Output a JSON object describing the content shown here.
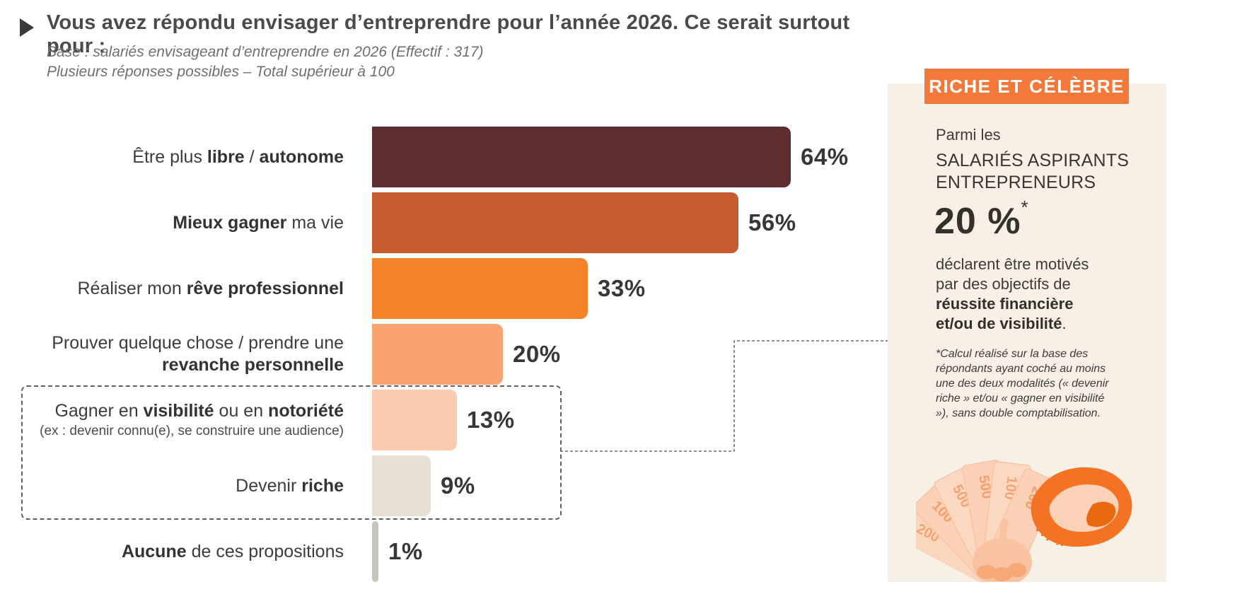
{
  "header": {
    "title": "Vous avez répondu envisager d’entreprendre pour l’année 2026. Ce serait surtout pour :",
    "base_line1": "Base : salariés envisageant d’entreprendre en 2026 (Effectif : 317)",
    "base_line2": "Plusieurs réponses possibles – Total supérieur à 100"
  },
  "chart_data": {
    "type": "bar",
    "orientation": "horizontal",
    "unit": "%",
    "xlim": [
      0,
      70
    ],
    "grid": false,
    "legend": "none",
    "categories": [
      "Être plus libre / autonome",
      "Mieux gagner ma vie",
      "Réaliser mon rêve professionnel",
      "Prouver quelque chose / prendre une revanche personnelle",
      "Gagner en visibilité ou en notoriété",
      "Devenir riche",
      "Aucune de ces propositions"
    ],
    "values": [
      64,
      56,
      33,
      20,
      13,
      9,
      1
    ],
    "rows": [
      {
        "label_runs": [
          {
            "t": "Être plus ",
            "b": false
          },
          {
            "t": "libre",
            "b": true
          },
          {
            "t": " / ",
            "b": false
          },
          {
            "t": "autonome",
            "b": true
          }
        ],
        "sublabel": "",
        "value": 64,
        "display": "64%",
        "color": "#5d2e2d"
      },
      {
        "label_runs": [
          {
            "t": "Mieux gagner",
            "b": true
          },
          {
            "t": " ma vie",
            "b": false
          }
        ],
        "sublabel": "",
        "value": 56,
        "display": "56%",
        "color": "#c75b2f"
      },
      {
        "label_runs": [
          {
            "t": "Réaliser mon ",
            "b": false
          },
          {
            "t": "rêve professionnel",
            "b": true
          }
        ],
        "sublabel": "",
        "value": 33,
        "display": "33%",
        "color": "#f5822a"
      },
      {
        "label_runs": [
          {
            "t": "Prouver quelque chose / prendre une ",
            "b": false
          },
          {
            "t": "revanche personnelle",
            "b": true
          }
        ],
        "sublabel": "",
        "value": 20,
        "display": "20%",
        "color": "#f9a470"
      },
      {
        "label_runs": [
          {
            "t": "Gagner en ",
            "b": false
          },
          {
            "t": "visibilité",
            "b": true
          },
          {
            "t": " ou en ",
            "b": false
          },
          {
            "t": "notoriété",
            "b": true
          }
        ],
        "sublabel": "(ex : devenir connu(e), se construire une audience)",
        "value": 13,
        "display": "13%",
        "color": "#fbc9ad"
      },
      {
        "label_runs": [
          {
            "t": "Devenir ",
            "b": false
          },
          {
            "t": "riche",
            "b": true
          }
        ],
        "sublabel": "",
        "value": 9,
        "display": "9%",
        "color": "#e6e0d3"
      },
      {
        "label_runs": [
          {
            "t": "Aucune",
            "b": true
          },
          {
            "t": " de ces propositions",
            "b": false
          }
        ],
        "sublabel": "",
        "value": 1,
        "display": "1%",
        "color": "#c7c3bd"
      }
    ],
    "highlighted_categories": [
      "Gagner en visibilité ou en notoriété",
      "Devenir riche"
    ]
  },
  "side_panel": {
    "badge": "RICHE ET CÉLÈBRE",
    "intro": "Parmi les",
    "population": "SALARIÉS ASPIRANTS ENTREPRENEURS",
    "stat": "20 %",
    "stat_asterisk": "*",
    "desc_runs": [
      {
        "t": "déclarent être motivés par des objectifs de ",
        "b": false
      },
      {
        "t": "réussite financière et/ou de visibilité",
        "b": true
      },
      {
        "t": ".",
        "b": false
      }
    ],
    "footnote": "*Calcul réalisé sur la base des répondants ayant coché au moins une des deux modalités (« devenir riche » et/ou « gagner en visibilité »), sans double comptabilisation.",
    "illustration": "hand-holding-euro-banknotes-and-orange-halftone-sunglasses-lens"
  },
  "colors": {
    "accent_orange": "#f3793a",
    "panel_cream": "#f6f0e7",
    "bar_dark_maroon": "#5d2e2d",
    "bar_burnt_orange": "#c75b2f",
    "bar_orange": "#f5822a",
    "bar_salmon": "#f9a470",
    "bar_peach": "#fbc9ad",
    "bar_beige": "#e6e0d3",
    "bar_gray": "#c7c3bd",
    "text_dark": "#3e3e3e",
    "dashed_line": "#5f5f5f"
  }
}
